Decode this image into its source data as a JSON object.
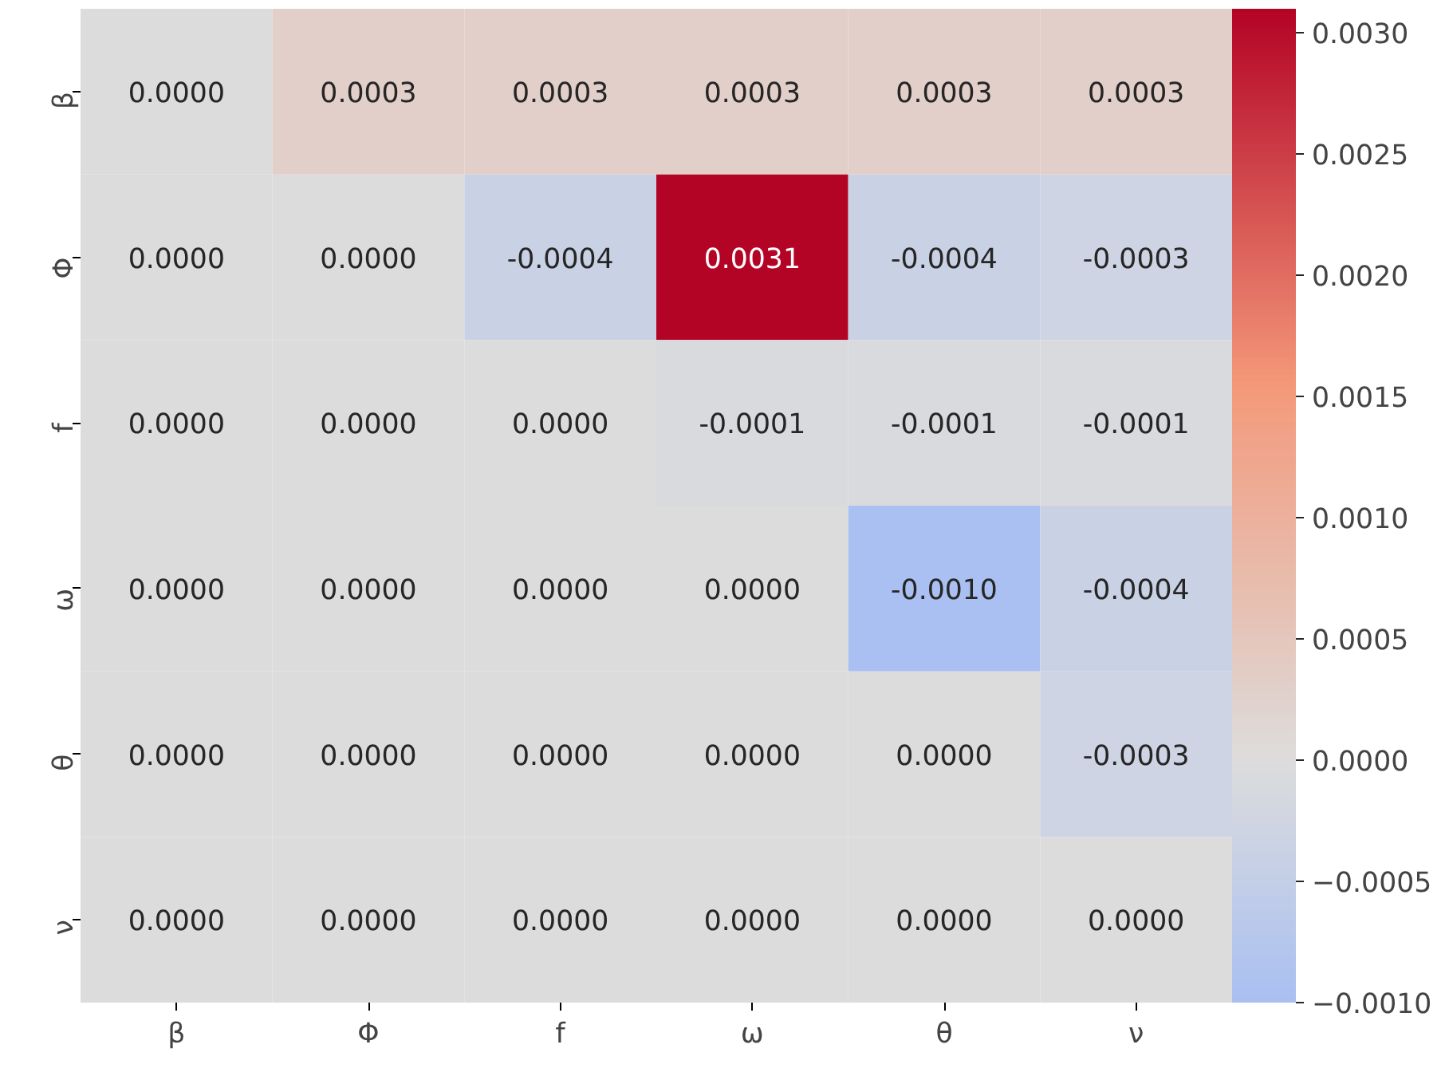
{
  "chart_data": {
    "type": "heatmap",
    "categories": [
      "β",
      "Φ",
      "f",
      "ω",
      "θ",
      "ν"
    ],
    "y_categories": [
      "β",
      "Φ",
      "f",
      "ω",
      "θ",
      "ν"
    ],
    "cells": [
      [
        0,
        0.0003,
        0.0003,
        0.0003,
        0.0003,
        0.0003
      ],
      [
        0,
        0,
        -0.0004,
        0.0031,
        -0.0004,
        -0.0003
      ],
      [
        0,
        0,
        0,
        -0.0001,
        -0.0001,
        -0.0001
      ],
      [
        0,
        0,
        0,
        0,
        -0.001,
        -0.0004
      ],
      [
        0,
        0,
        0,
        0,
        0,
        -0.0003
      ],
      [
        0,
        0,
        0,
        0,
        0,
        0
      ]
    ],
    "cell_labels": [
      [
        "0.0000",
        "0.0003",
        "0.0003",
        "0.0003",
        "0.0003",
        "0.0003"
      ],
      [
        "0.0000",
        "0.0000",
        "-0.0004",
        "0.0031",
        "-0.0004",
        "-0.0003"
      ],
      [
        "0.0000",
        "0.0000",
        "0.0000",
        "-0.0001",
        "-0.0001",
        "-0.0001"
      ],
      [
        "0.0000",
        "0.0000",
        "0.0000",
        "0.0000",
        "-0.0010",
        "-0.0004"
      ],
      [
        "0.0000",
        "0.0000",
        "0.0000",
        "0.0000",
        "0.0000",
        "-0.0003"
      ],
      [
        "0.0000",
        "0.0000",
        "0.0000",
        "0.0000",
        "0.0000",
        "0.0000"
      ]
    ],
    "clim": [
      -0.001,
      0.0031
    ],
    "cticks": [
      {
        "value": -0.001,
        "label": "−0.0010"
      },
      {
        "value": -0.0005,
        "label": "−0.0005"
      },
      {
        "value": 0,
        "label": "0.0000"
      },
      {
        "value": 0.0005,
        "label": "0.0005"
      },
      {
        "value": 0.001,
        "label": "0.0010"
      },
      {
        "value": 0.0015,
        "label": "0.0015"
      },
      {
        "value": 0.002,
        "label": "0.0020"
      },
      {
        "value": 0.0025,
        "label": "0.0025"
      },
      {
        "value": 0.003,
        "label": "0.0030"
      }
    ]
  }
}
